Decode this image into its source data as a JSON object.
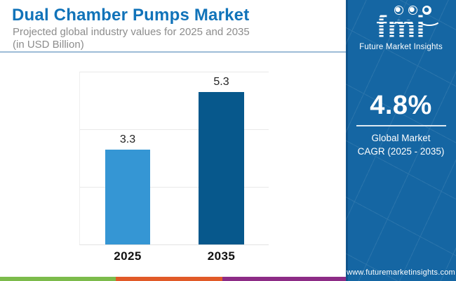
{
  "header": {
    "title": "Dual Chamber Pumps Market",
    "subtitle_line1": "Projected global industry values for 2025 and 2035",
    "subtitle_line2": "(in USD Billion)",
    "accent_color": "#1173b9"
  },
  "chart_data": {
    "type": "bar",
    "title": "Dual Chamber Pumps Market",
    "subtitle": "Projected global industry values for 2025 and 2035 (in USD Billion)",
    "unit": "USD Billion",
    "categories": [
      "2025",
      "2035"
    ],
    "values": [
      3.3,
      5.3
    ],
    "value_labels": [
      "3.3",
      "5.3"
    ],
    "bar_colors": [
      "#3596d4",
      "#07588c"
    ],
    "ylim": [
      0,
      6
    ],
    "gridline_values": [
      0,
      2,
      4,
      6
    ],
    "y_tick_labels_visible": false,
    "legend": "none",
    "xlabel": "",
    "ylabel": ""
  },
  "sidebar": {
    "background": "#1566a3",
    "logo": {
      "text": "fmi",
      "tagline": "Future Market Insights",
      "globe_icons": [
        "americas-globe",
        "asia-globe",
        "africa-globe"
      ]
    },
    "cagr": {
      "value": "4.8%",
      "label_line1": "Global Market",
      "label_line2": "CAGR (2025 - 2035)"
    },
    "website": "www.futuremarketinsights.com"
  },
  "footer": {
    "stripe_colors": [
      "#7cbb4b",
      "#e15a28",
      "#8d2c86"
    ]
  }
}
